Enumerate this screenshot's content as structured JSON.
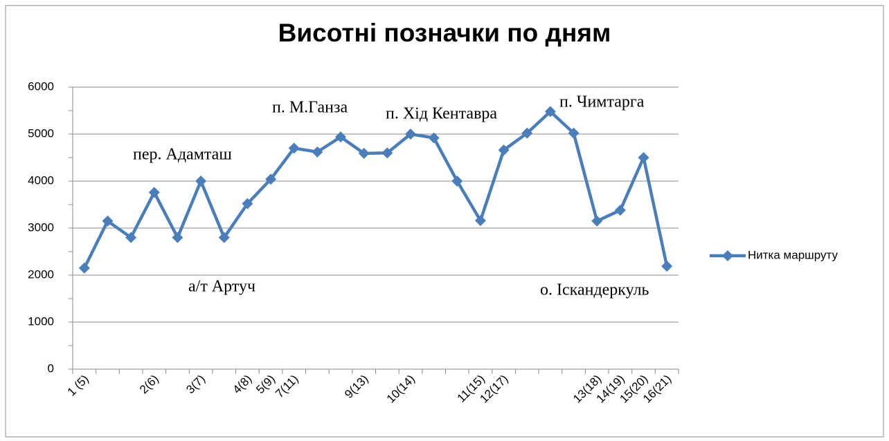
{
  "chart_data": {
    "type": "line",
    "title": "Висотні позначки по дням",
    "categories": [
      "1 (5)",
      null,
      null,
      "2(6)",
      null,
      "3(7)",
      null,
      "4(8)",
      "5(9)",
      "7(11)",
      null,
      null,
      "9(13)",
      null,
      "10(14)",
      null,
      null,
      "11(15)",
      "12(17)",
      null,
      null,
      null,
      "13(18)",
      "14(19)",
      "15(20)",
      "16(21)"
    ],
    "series": [
      {
        "name": "Нитка маршруту",
        "color": "#4a7ebb",
        "values": [
          2150,
          3150,
          2800,
          3760,
          2800,
          4000,
          2800,
          3520,
          4040,
          4700,
          4620,
          4940,
          4590,
          4600,
          5000,
          4920,
          4000,
          3160,
          4660,
          5020,
          5480,
          5020,
          3150,
          3380,
          4500,
          2190
        ]
      }
    ],
    "ylim": [
      0,
      6000
    ],
    "yticks": [
      0,
      1000,
      2000,
      3000,
      4000,
      5000,
      6000
    ],
    "grid": true,
    "legend": "right",
    "annotations": [
      "а/т Артуч",
      "пер. Адамташ",
      "п. М.Ганза",
      "п. Хід Кентавра",
      "п. Чимтарга",
      "о. Іскандеркуль"
    ]
  }
}
